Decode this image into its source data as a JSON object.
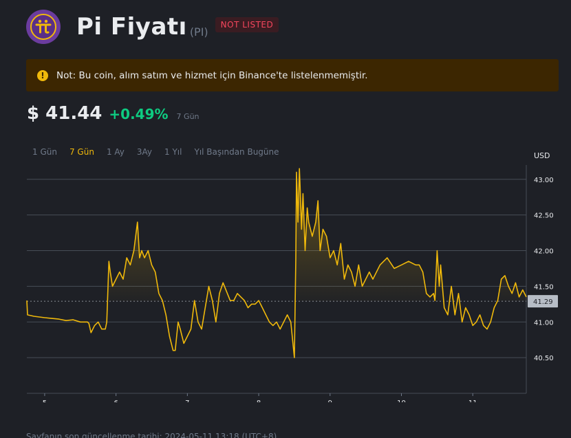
{
  "header": {
    "title": "Pi Fiyatı",
    "symbol": "(PI)",
    "badge": "NOT LISTED",
    "logo_glyph": "π"
  },
  "notice": {
    "icon": "!",
    "text": "Not: Bu coin, alım satım ve hizmet için Binance'te listelenmemiştir."
  },
  "price": {
    "value": "$ 41.44",
    "change": "+0.49%",
    "period": "7 Gün"
  },
  "ranges": [
    "1 Gün",
    "7 Gün",
    "1 Ay",
    "3Ay",
    "1 Yıl",
    "Yıl Başından Bugüne"
  ],
  "active_range": 1,
  "footer": "Sayfanın son güncellenme tarihi: 2024-05-11 13:18 (UTC+8)",
  "colors": {
    "line": "#f0b90b",
    "accent": "#f0b90b",
    "positive": "#0ecb81",
    "badge_text": "#f6465d"
  },
  "chart_data": {
    "type": "line",
    "ylabel": "USD",
    "ylim": [
      40.0,
      43.2
    ],
    "yticks": [
      "43.00",
      "42.50",
      "42.00",
      "41.50",
      "41.00",
      "40.50"
    ],
    "ytick_values": [
      43.0,
      42.5,
      42.0,
      41.5,
      41.0,
      40.5
    ],
    "xlim": [
      4.75,
      11.75
    ],
    "xticks": [
      "5",
      "6",
      "7",
      "8",
      "9",
      "10",
      "11"
    ],
    "xtick_values": [
      5,
      6,
      7,
      8,
      9,
      10,
      11
    ],
    "baseline": 41.29,
    "baseline_label": "41.29",
    "grid": true,
    "series": [
      {
        "x": [
          4.75,
          4.76,
          4.85,
          5.0,
          5.1,
          5.2,
          5.3,
          5.4,
          5.5,
          5.6,
          5.62,
          5.65,
          5.7,
          5.75,
          5.8,
          5.85,
          5.87,
          5.9,
          5.92,
          5.95,
          6.0,
          6.05,
          6.1,
          6.15,
          6.2,
          6.25,
          6.3,
          6.33,
          6.36,
          6.4,
          6.45,
          6.5,
          6.55,
          6.6,
          6.65,
          6.7,
          6.75,
          6.8,
          6.83,
          6.87,
          6.9,
          6.95,
          7.0,
          7.05,
          7.1,
          7.15,
          7.2,
          7.25,
          7.3,
          7.35,
          7.4,
          7.45,
          7.5,
          7.6,
          7.65,
          7.7,
          7.75,
          7.8,
          7.85,
          7.9,
          7.95,
          8.0,
          8.05,
          8.1,
          8.15,
          8.2,
          8.25,
          8.3,
          8.35,
          8.4,
          8.45,
          8.5,
          8.52,
          8.53,
          8.55,
          8.56,
          8.57,
          8.58,
          8.6,
          8.62,
          8.65,
          8.68,
          8.7,
          8.75,
          8.8,
          8.83,
          8.86,
          8.9,
          8.95,
          9.0,
          9.05,
          9.1,
          9.15,
          9.2,
          9.25,
          9.3,
          9.35,
          9.4,
          9.45,
          9.5,
          9.55,
          9.6,
          9.7,
          9.8,
          9.9,
          10.0,
          10.1,
          10.2,
          10.25,
          10.3,
          10.35,
          10.4,
          10.45,
          10.47,
          10.5,
          10.53,
          10.55,
          10.6,
          10.65,
          10.7,
          10.75,
          10.8,
          10.85,
          10.9,
          10.95,
          11.0,
          11.05,
          11.1,
          11.15,
          11.2,
          11.25,
          11.3,
          11.35,
          11.4,
          11.45,
          11.5,
          11.55,
          11.6,
          11.65,
          11.7,
          11.75
        ],
        "y": [
          41.3,
          41.1,
          41.08,
          41.06,
          41.05,
          41.04,
          41.02,
          41.03,
          41.0,
          41.0,
          40.98,
          40.85,
          40.95,
          41.0,
          40.9,
          40.9,
          41.0,
          41.85,
          41.7,
          41.5,
          41.6,
          41.7,
          41.6,
          41.9,
          41.8,
          42.0,
          42.4,
          41.9,
          42.0,
          41.9,
          42.0,
          41.8,
          41.7,
          41.4,
          41.3,
          41.1,
          40.8,
          40.6,
          40.6,
          41.0,
          40.9,
          40.7,
          40.8,
          40.9,
          41.3,
          41.0,
          40.9,
          41.2,
          41.5,
          41.3,
          41.0,
          41.4,
          41.55,
          41.3,
          41.3,
          41.4,
          41.35,
          41.3,
          41.2,
          41.25,
          41.25,
          41.3,
          41.2,
          41.1,
          41.0,
          40.95,
          41.0,
          40.9,
          41.0,
          41.1,
          41.0,
          40.5,
          41.9,
          43.1,
          42.4,
          42.8,
          43.15,
          42.9,
          42.3,
          42.8,
          42.0,
          42.6,
          42.4,
          42.2,
          42.4,
          42.7,
          42.0,
          42.3,
          42.2,
          41.9,
          42.0,
          41.8,
          42.1,
          41.6,
          41.8,
          41.7,
          41.5,
          41.8,
          41.5,
          41.6,
          41.7,
          41.6,
          41.8,
          41.9,
          41.75,
          41.8,
          41.85,
          41.8,
          41.8,
          41.7,
          41.4,
          41.35,
          41.4,
          41.3,
          42.0,
          41.5,
          41.8,
          41.2,
          41.1,
          41.5,
          41.1,
          41.4,
          41.0,
          41.2,
          41.1,
          40.95,
          41.0,
          41.1,
          40.95,
          40.9,
          41.0,
          41.2,
          41.3,
          41.6,
          41.65,
          41.5,
          41.4,
          41.55,
          41.35,
          41.45,
          41.35
        ]
      }
    ]
  }
}
